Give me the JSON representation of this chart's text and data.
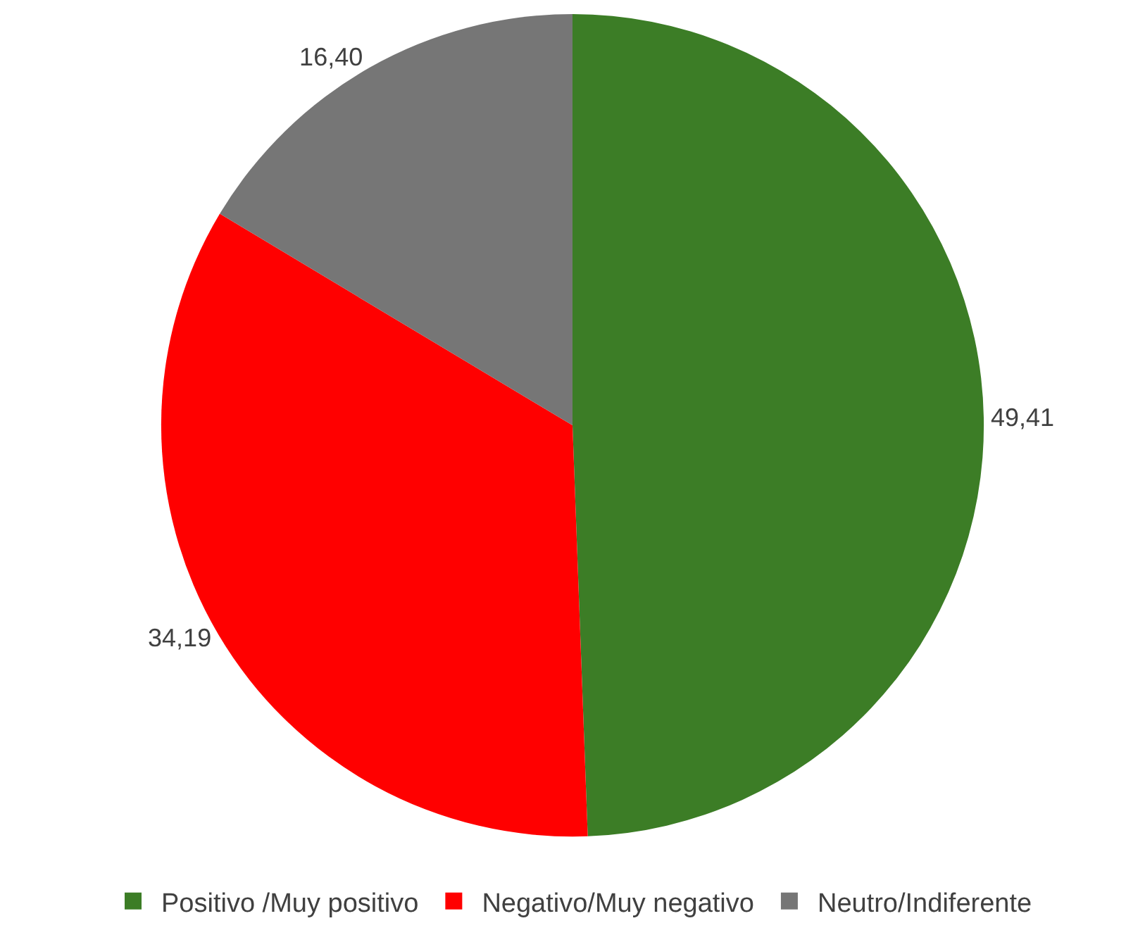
{
  "chart_data": {
    "type": "pie",
    "categories": [
      "Positivo /Muy positivo",
      "Negativo/Muy negativo",
      "Neutro/Indiferente"
    ],
    "values": [
      49.41,
      34.19,
      16.4
    ],
    "value_labels": [
      "49,41",
      "34,19",
      "16,40"
    ],
    "colors": [
      "#3c7d26",
      "#ff0000",
      "#767676"
    ],
    "legend": "bottom"
  }
}
